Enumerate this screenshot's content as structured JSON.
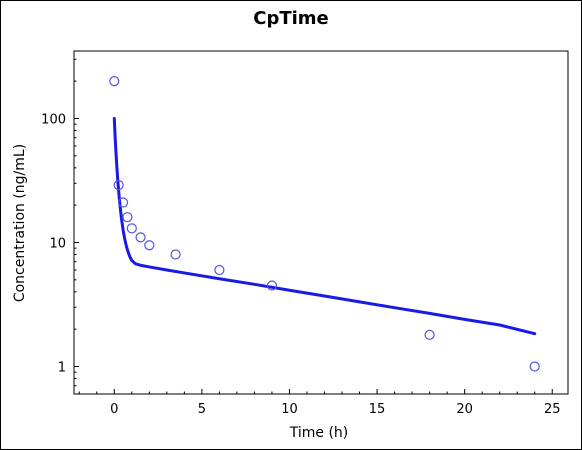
{
  "chart_data": {
    "type": "scatter",
    "title": "CpTime",
    "xlabel": "Time (h)",
    "ylabel": "Concentration (ng/mL)",
    "x_scale": "linear",
    "y_scale": "log",
    "xlim": [
      -2.3,
      25.9
    ],
    "ylim": [
      0.6,
      350
    ],
    "x_ticks": [
      0,
      5,
      10,
      15,
      20,
      25
    ],
    "x_tick_labels": [
      "0",
      "5",
      "10",
      "15",
      "20",
      "25"
    ],
    "y_ticks": [
      1,
      10,
      100
    ],
    "y_tick_labels": [
      "1",
      "10",
      "100"
    ],
    "grid": false,
    "legend": "none",
    "colors": {
      "observed": "#5555dd",
      "fit": "#1a1ae6"
    },
    "series": [
      {
        "type": "scatter",
        "marker": "open-circle",
        "x": [
          0,
          0.25,
          0.5,
          0.75,
          1,
          1.5,
          2,
          3.5,
          6,
          9,
          18,
          24
        ],
        "y": [
          200,
          29,
          21,
          16,
          13,
          11,
          9.5,
          8,
          6,
          4.5,
          1.8,
          1.0
        ]
      },
      {
        "type": "line",
        "x": [
          0,
          0.05,
          0.1,
          0.15,
          0.2,
          0.3,
          0.4,
          0.5,
          0.6,
          0.7,
          0.8,
          0.9,
          1.0,
          1.2,
          1.5,
          2,
          3,
          4,
          6,
          8,
          10,
          12,
          14,
          16,
          18,
          20,
          22,
          24
        ],
        "y": [
          100,
          70,
          52,
          40,
          31.5,
          21.5,
          16,
          12.7,
          10.6,
          9.2,
          8.3,
          7.6,
          7.15,
          6.75,
          6.55,
          6.35,
          6.0,
          5.68,
          5.1,
          4.6,
          4.12,
          3.7,
          3.32,
          2.98,
          2.68,
          2.4,
          2.16,
          1.84
        ]
      }
    ]
  }
}
